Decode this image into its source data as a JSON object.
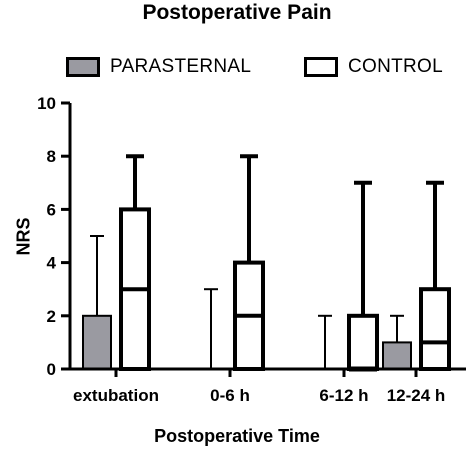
{
  "chart_data": {
    "type": "boxplot",
    "title": "Postoperative Pain",
    "xlabel": "Postoperative Time",
    "ylabel": "NRS",
    "ylim": [
      0,
      10
    ],
    "yticks": [
      "0",
      "2",
      "4",
      "6",
      "8",
      "10"
    ],
    "categories": [
      "extubation",
      "0-6 h",
      "6-12 h",
      "12-24 h"
    ],
    "legend_position": "top",
    "grid": false,
    "series": [
      {
        "name": "PARASTERNAL",
        "fill": "#9a9aa1",
        "boxes": [
          {
            "min": 0,
            "q1": 0,
            "median": 0,
            "q3": 2,
            "max": 5
          },
          {
            "min": 0,
            "q1": 0,
            "median": 0,
            "q3": 0,
            "max": 3
          },
          {
            "min": 0,
            "q1": 0,
            "median": 0,
            "q3": 0,
            "max": 2
          },
          {
            "min": 0,
            "q1": 0,
            "median": 0,
            "q3": 1,
            "max": 2
          }
        ]
      },
      {
        "name": "CONTROL",
        "fill": "#ffffff",
        "boxes": [
          {
            "min": 0,
            "q1": 0,
            "median": 3,
            "q3": 6,
            "max": 8
          },
          {
            "min": 0,
            "q1": 0,
            "median": 2,
            "q3": 4,
            "max": 8
          },
          {
            "min": 0,
            "q1": 0,
            "median": 0,
            "q3": 2,
            "max": 7
          },
          {
            "min": 0,
            "q1": 0,
            "median": 1,
            "q3": 3,
            "max": 7
          }
        ]
      }
    ]
  }
}
